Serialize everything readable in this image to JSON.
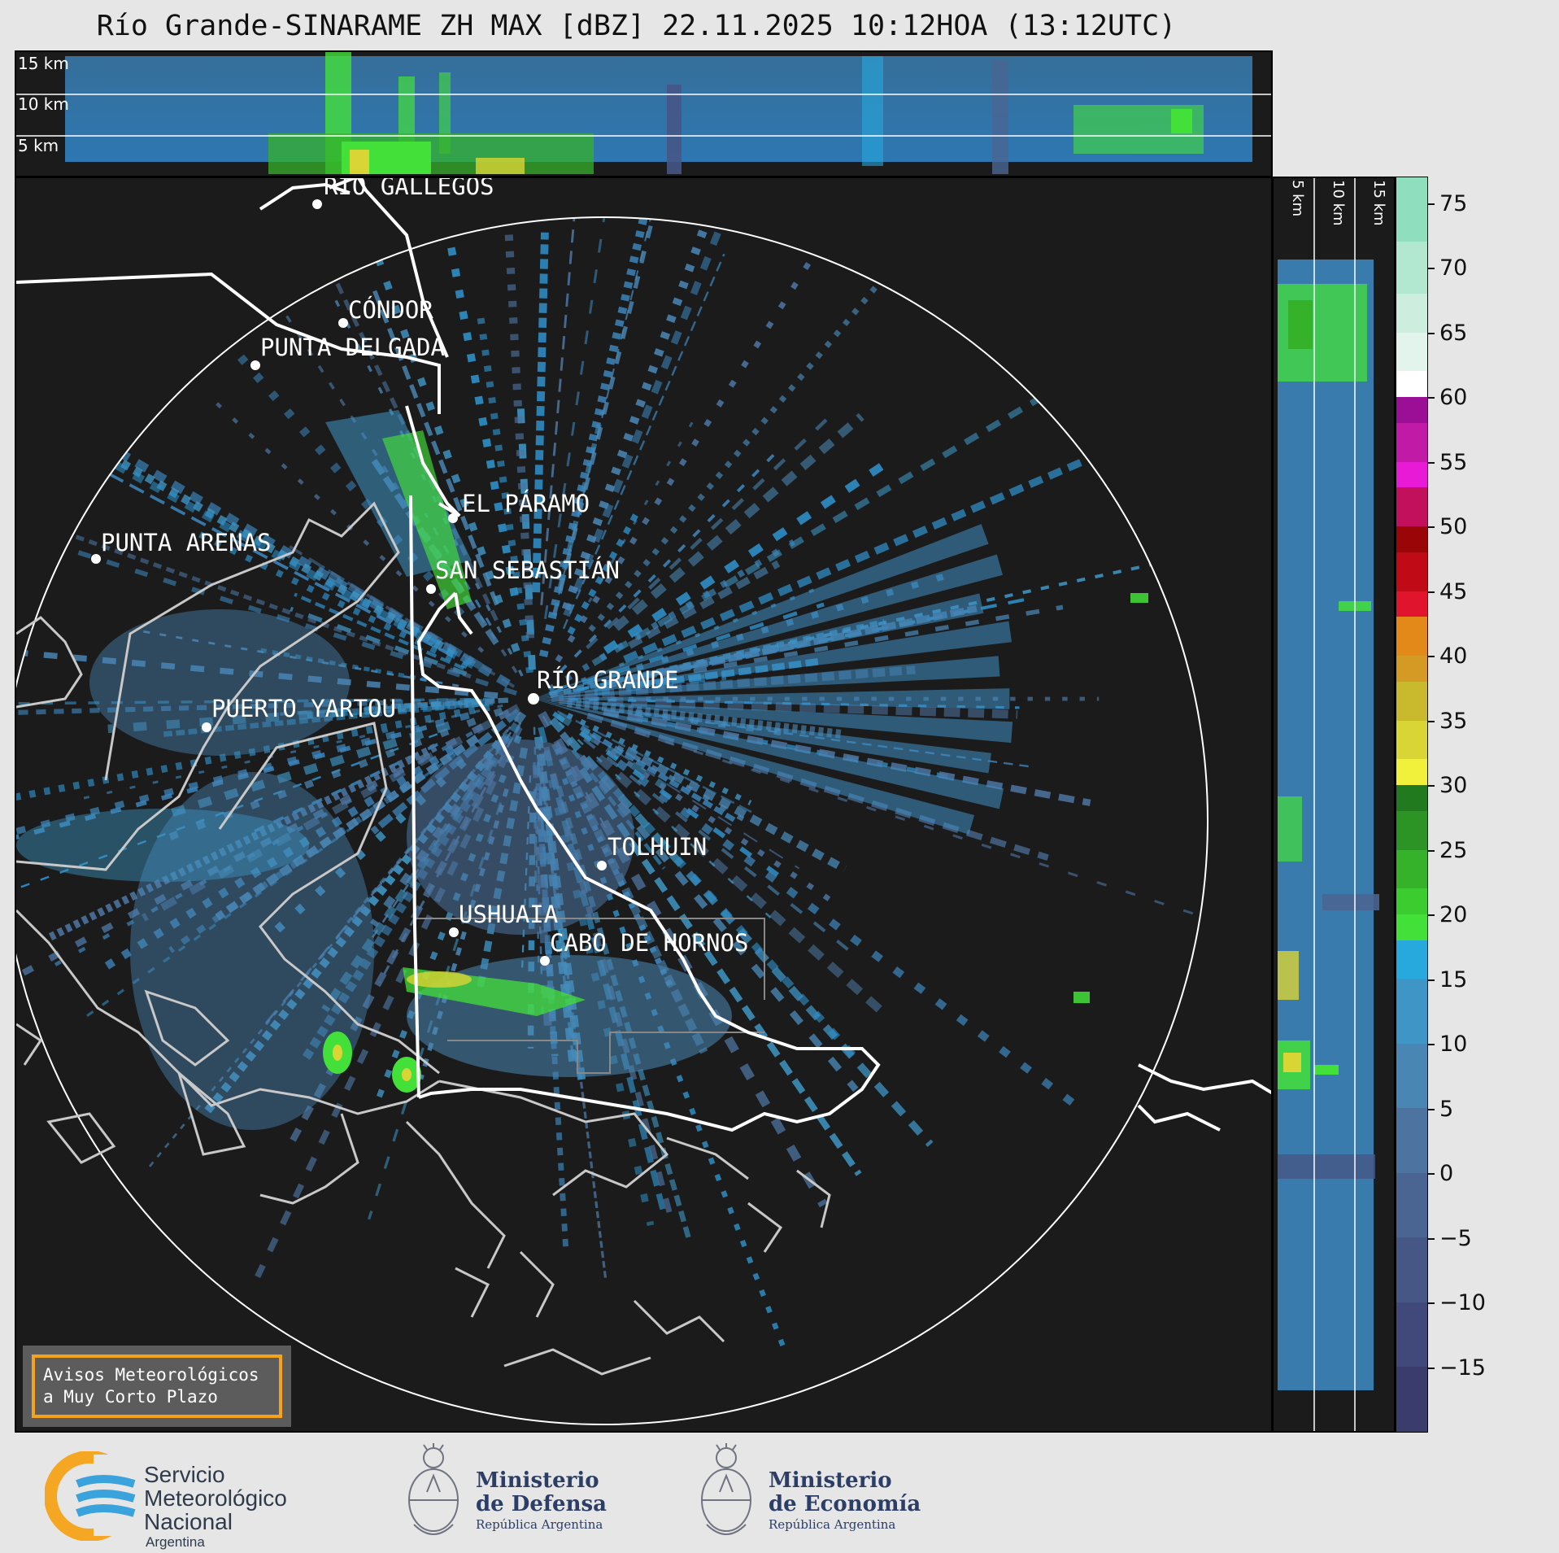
{
  "title": "Río Grande-SINARAME ZH MAX [dBZ] 22.11.2025 10:12HOA (13:12UTC)",
  "top_profile": {
    "altitude_labels": [
      "15 km",
      "10 km",
      "5 km"
    ]
  },
  "side_profile": {
    "altitude_labels": [
      "5 km",
      "10 km",
      "15 km"
    ]
  },
  "cities": [
    {
      "name": "RÍO GALLEGOS"
    },
    {
      "name": "CÓNDOR"
    },
    {
      "name": "PUNTA DELGADA"
    },
    {
      "name": "EL PÁRAMO"
    },
    {
      "name": "PUNTA ARENAS"
    },
    {
      "name": "SAN SEBASTIÁN"
    },
    {
      "name": "RÍO GRANDE"
    },
    {
      "name": "PUERTO YARTOU"
    },
    {
      "name": "TOLHUIN"
    },
    {
      "name": "USHUAIA"
    },
    {
      "name": "CABO DE HORNOS"
    }
  ],
  "colorbar": {
    "unit": "dBZ",
    "range": [
      -20,
      77
    ],
    "tick_labels": [
      "75",
      "70",
      "65",
      "60",
      "55",
      "50",
      "45",
      "40",
      "35",
      "30",
      "25",
      "20",
      "15",
      "10",
      "5",
      "0",
      "−5",
      "−10",
      "−15"
    ],
    "colors": [
      {
        "from": -20,
        "to": -15,
        "color": "#3a3d6b"
      },
      {
        "from": -15,
        "to": -10,
        "color": "#40497a"
      },
      {
        "from": -10,
        "to": -5,
        "color": "#465786"
      },
      {
        "from": -5,
        "to": 0,
        "color": "#4a6592"
      },
      {
        "from": 0,
        "to": 5,
        "color": "#4d74a0"
      },
      {
        "from": 5,
        "to": 10,
        "color": "#4a86b4"
      },
      {
        "from": 10,
        "to": 15,
        "color": "#3f96c6"
      },
      {
        "from": 15,
        "to": 18,
        "color": "#27a9dd"
      },
      {
        "from": 18,
        "to": 20,
        "color": "#44e03a"
      },
      {
        "from": 20,
        "to": 22,
        "color": "#3bcc30"
      },
      {
        "from": 22,
        "to": 25,
        "color": "#35b12a"
      },
      {
        "from": 25,
        "to": 28,
        "color": "#2c9424"
      },
      {
        "from": 28,
        "to": 30,
        "color": "#227a1e"
      },
      {
        "from": 30,
        "to": 32,
        "color": "#f1f03a"
      },
      {
        "from": 32,
        "to": 35,
        "color": "#d9d535"
      },
      {
        "from": 35,
        "to": 38,
        "color": "#c9b92d"
      },
      {
        "from": 38,
        "to": 40,
        "color": "#d49a24"
      },
      {
        "from": 40,
        "to": 43,
        "color": "#e2891a"
      },
      {
        "from": 43,
        "to": 45,
        "color": "#e0142c"
      },
      {
        "from": 45,
        "to": 48,
        "color": "#c00a16"
      },
      {
        "from": 48,
        "to": 50,
        "color": "#9a0608"
      },
      {
        "from": 50,
        "to": 53,
        "color": "#c2105c"
      },
      {
        "from": 53,
        "to": 55,
        "color": "#e81ad6"
      },
      {
        "from": 55,
        "to": 58,
        "color": "#c01aa6"
      },
      {
        "from": 58,
        "to": 60,
        "color": "#9a0f96"
      },
      {
        "from": 60,
        "to": 62,
        "color": "#ffffff"
      },
      {
        "from": 62,
        "to": 65,
        "color": "#e2f4ec"
      },
      {
        "from": 65,
        "to": 68,
        "color": "#cdeede"
      },
      {
        "from": 68,
        "to": 72,
        "color": "#b3e8d0"
      },
      {
        "from": 72,
        "to": 77,
        "color": "#8fdfbf"
      }
    ]
  },
  "notice": {
    "line1": "Avisos Meteorológicos",
    "line2": "a Muy Corto Plazo"
  },
  "logos": {
    "smn": {
      "line1": "Servicio",
      "line2": "Meteorológico",
      "line3": "Nacional",
      "line4": "Argentina"
    },
    "defensa": {
      "line1": "Ministerio",
      "line2": "de Defensa",
      "line3": "República Argentina"
    },
    "economia": {
      "line1": "Ministerio",
      "line2": "de Economía",
      "line3": "República Argentina"
    }
  },
  "colors": {
    "panel_bg": "#1b1b1b",
    "echo_blue": "#3f8fc4",
    "echo_green": "#44e03a",
    "coast_grey": "#c8c8c8",
    "notice_border": "#f5a31a"
  }
}
